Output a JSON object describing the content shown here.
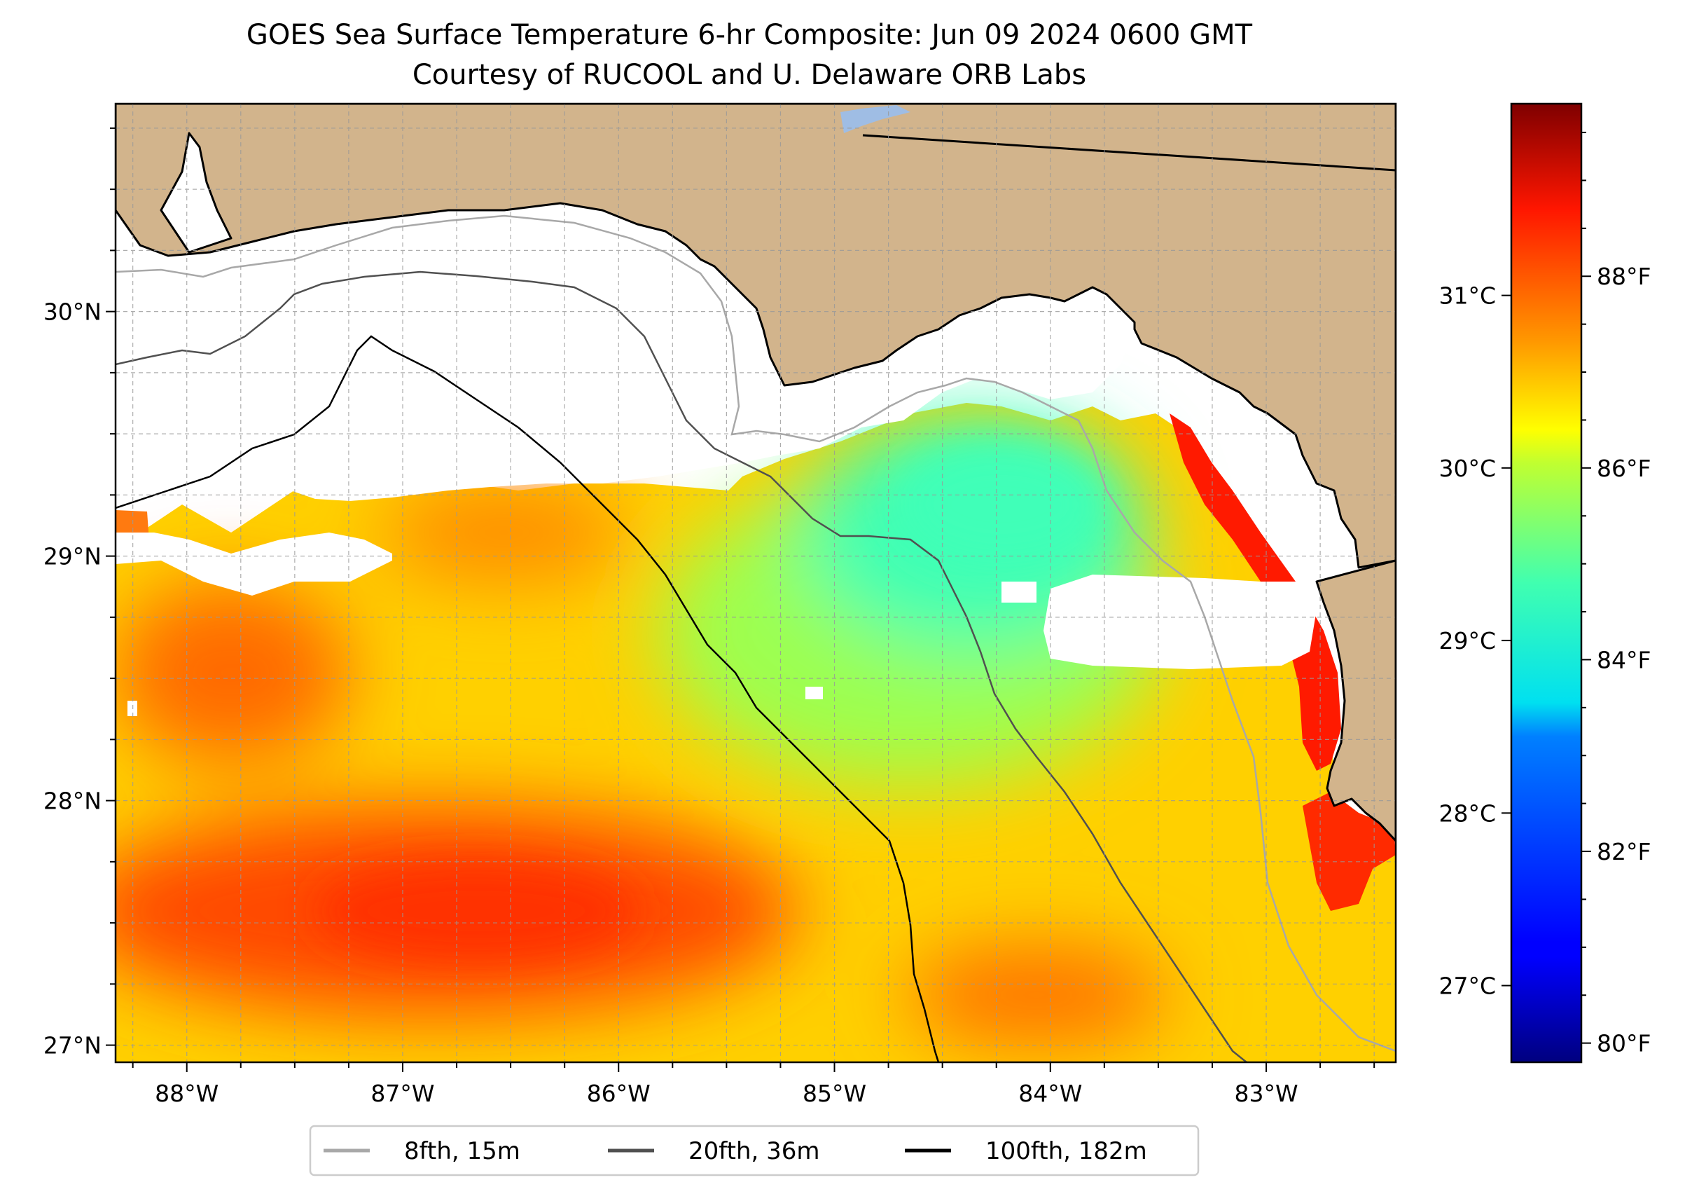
{
  "title": {
    "line1": "GOES Sea Surface Temperature 6-hr Composite: Jun 09 2024 0600 GMT",
    "line2": "Courtesy of RUCOOL and U. Delaware ORB Labs"
  },
  "map": {
    "lon_range": [
      -88.33,
      -82.4
    ],
    "lat_range": [
      26.93,
      30.85
    ],
    "grid": true,
    "lon_ticks": [
      {
        "value": -88,
        "label": "88°W"
      },
      {
        "value": -87,
        "label": "87°W"
      },
      {
        "value": -86,
        "label": "86°W"
      },
      {
        "value": -85,
        "label": "85°W"
      },
      {
        "value": -84,
        "label": "84°W"
      },
      {
        "value": -83,
        "label": "83°W"
      }
    ],
    "lat_ticks": [
      {
        "value": 30,
        "label": "30°N"
      },
      {
        "value": 29,
        "label": "29°N"
      },
      {
        "value": 28,
        "label": "28°N"
      },
      {
        "value": 27,
        "label": "27°N"
      }
    ],
    "colors": {
      "land": "#d2b48c",
      "ocean_missing": "#ffffff",
      "lake": "#9fbde4"
    }
  },
  "colorbar": {
    "colormap": "jet",
    "range_f": [
      79.8,
      89.8
    ],
    "celsius_ticks": [
      {
        "value": 31,
        "label": "31°C"
      },
      {
        "value": 30,
        "label": "30°C"
      },
      {
        "value": 29,
        "label": "29°C"
      },
      {
        "value": 28,
        "label": "28°C"
      },
      {
        "value": 27,
        "label": "27°C"
      }
    ],
    "fahrenheit_ticks": [
      {
        "value": 88,
        "label": "88°F"
      },
      {
        "value": 86,
        "label": "86°F"
      },
      {
        "value": 84,
        "label": "84°F"
      },
      {
        "value": 82,
        "label": "82°F"
      },
      {
        "value": 80,
        "label": "80°F"
      }
    ]
  },
  "legend": {
    "placement": "bottom-center",
    "entries": [
      {
        "label": "8fth, 15m",
        "color": "#a8a8a8"
      },
      {
        "label": "20fth, 36m",
        "color": "#505050"
      },
      {
        "label": "100fth, 182m",
        "color": "#000000"
      }
    ]
  }
}
